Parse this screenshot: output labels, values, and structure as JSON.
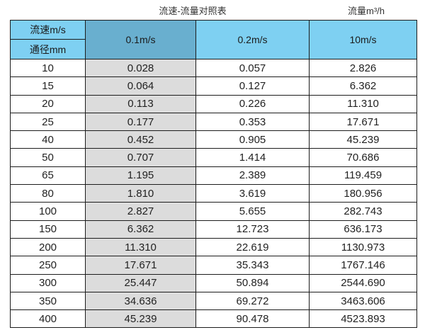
{
  "titles": {
    "main": "流速-流量对照表",
    "right": "流量m³/h"
  },
  "header": {
    "corner_top": "流速m/s",
    "corner_bottom": "通径mm",
    "columns": [
      "0.1m/s",
      "0.2m/s",
      "10m/s"
    ]
  },
  "colors": {
    "header_light_blue": "#7ed0f2",
    "header_dark_blue": "#69afcf",
    "col_gray": "#dcdcdc",
    "border": "#1c1c1c",
    "text": "#222222"
  },
  "chart_data": {
    "type": "table",
    "title": "流速-流量对照表",
    "flow_unit_label": "流量m³/h",
    "row_axis_label": "通径mm",
    "col_axis_label": "流速m/s",
    "columns": [
      "0.1m/s",
      "0.2m/s",
      "10m/s"
    ],
    "rows": [
      {
        "diameter": "10",
        "flows": [
          "0.028",
          "0.057",
          "2.826"
        ]
      },
      {
        "diameter": "15",
        "flows": [
          "0.064",
          "0.127",
          "6.362"
        ]
      },
      {
        "diameter": "20",
        "flows": [
          "0.113",
          "0.226",
          "11.310"
        ]
      },
      {
        "diameter": "25",
        "flows": [
          "0.177",
          "0.353",
          "17.671"
        ]
      },
      {
        "diameter": "40",
        "flows": [
          "0.452",
          "0.905",
          "45.239"
        ]
      },
      {
        "diameter": "50",
        "flows": [
          "0.707",
          "1.414",
          "70.686"
        ]
      },
      {
        "diameter": "65",
        "flows": [
          "1.195",
          "2.389",
          "119.459"
        ]
      },
      {
        "diameter": "80",
        "flows": [
          "1.810",
          "3.619",
          "180.956"
        ]
      },
      {
        "diameter": "100",
        "flows": [
          "2.827",
          "5.655",
          "282.743"
        ]
      },
      {
        "diameter": "150",
        "flows": [
          "6.362",
          "12.723",
          "636.173"
        ]
      },
      {
        "diameter": "200",
        "flows": [
          "11.310",
          "22.619",
          "1130.973"
        ]
      },
      {
        "diameter": "250",
        "flows": [
          "17.671",
          "35.343",
          "1767.146"
        ]
      },
      {
        "diameter": "300",
        "flows": [
          "25.447",
          "50.894",
          "2544.690"
        ]
      },
      {
        "diameter": "350",
        "flows": [
          "34.636",
          "69.272",
          "3463.606"
        ]
      },
      {
        "diameter": "400",
        "flows": [
          "45.239",
          "90.478",
          "4523.893"
        ]
      }
    ]
  }
}
